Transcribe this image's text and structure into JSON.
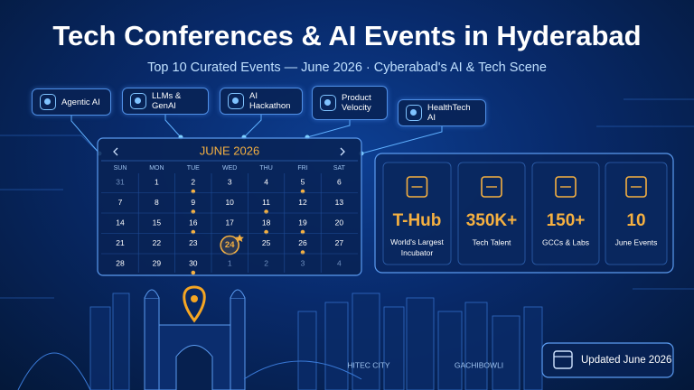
{
  "header": {
    "title": "Tech Conferences & AI Events in Hyderabad",
    "subtitle": "Top 10 Curated Events — June 2026 · Cyberabad's AI & Tech Scene"
  },
  "topics": [
    "Agentic AI",
    "LLMs & GenAI",
    "AI Hackathon",
    "Product Velocity",
    "HealthTech AI"
  ],
  "calendar": {
    "month": "JUNE 2026",
    "weekdays": [
      "SUN",
      "MON",
      "TUE",
      "WED",
      "THU",
      "FRI",
      "SAT"
    ],
    "weeks": [
      [
        {
          "day": 31,
          "muted": true
        },
        {
          "day": 1
        },
        {
          "day": 2,
          "event": true
        },
        {
          "day": 3
        },
        {
          "day": 4
        },
        {
          "day": 5,
          "event": true
        },
        {
          "day": 6
        }
      ],
      [
        {
          "day": 7
        },
        {
          "day": 8
        },
        {
          "day": 9,
          "event": true
        },
        {
          "day": 10
        },
        {
          "day": 11,
          "event": true
        },
        {
          "day": 12
        },
        {
          "day": 13
        }
      ],
      [
        {
          "day": 14
        },
        {
          "day": 15
        },
        {
          "day": 16,
          "event": true
        },
        {
          "day": 17
        },
        {
          "day": 18,
          "event": true
        },
        {
          "day": 19,
          "event": true
        },
        {
          "day": 20
        }
      ],
      [
        {
          "day": 21
        },
        {
          "day": 22
        },
        {
          "day": 23
        },
        {
          "day": 24,
          "featured": true
        },
        {
          "day": 25
        },
        {
          "day": 26,
          "event": true
        },
        {
          "day": 27
        }
      ],
      [
        {
          "day": 28
        },
        {
          "day": 29
        },
        {
          "day": 30,
          "event": true
        },
        {
          "day": 1,
          "muted": true
        },
        {
          "day": 2,
          "muted": true
        },
        {
          "day": 3,
          "muted": true
        },
        {
          "day": 4,
          "muted": true
        }
      ]
    ]
  },
  "stats": [
    {
      "value": "T-Hub",
      "label": "World's Largest Incubator"
    },
    {
      "value": "350K+",
      "label": "Tech Talent"
    },
    {
      "value": "150+",
      "label": "GCCs & Labs"
    },
    {
      "value": "10",
      "label": "June Events"
    }
  ],
  "places": [
    "HITEC CITY",
    "GACHIBOWLI"
  ],
  "footer": {
    "badge": "Updated June 2026"
  }
}
